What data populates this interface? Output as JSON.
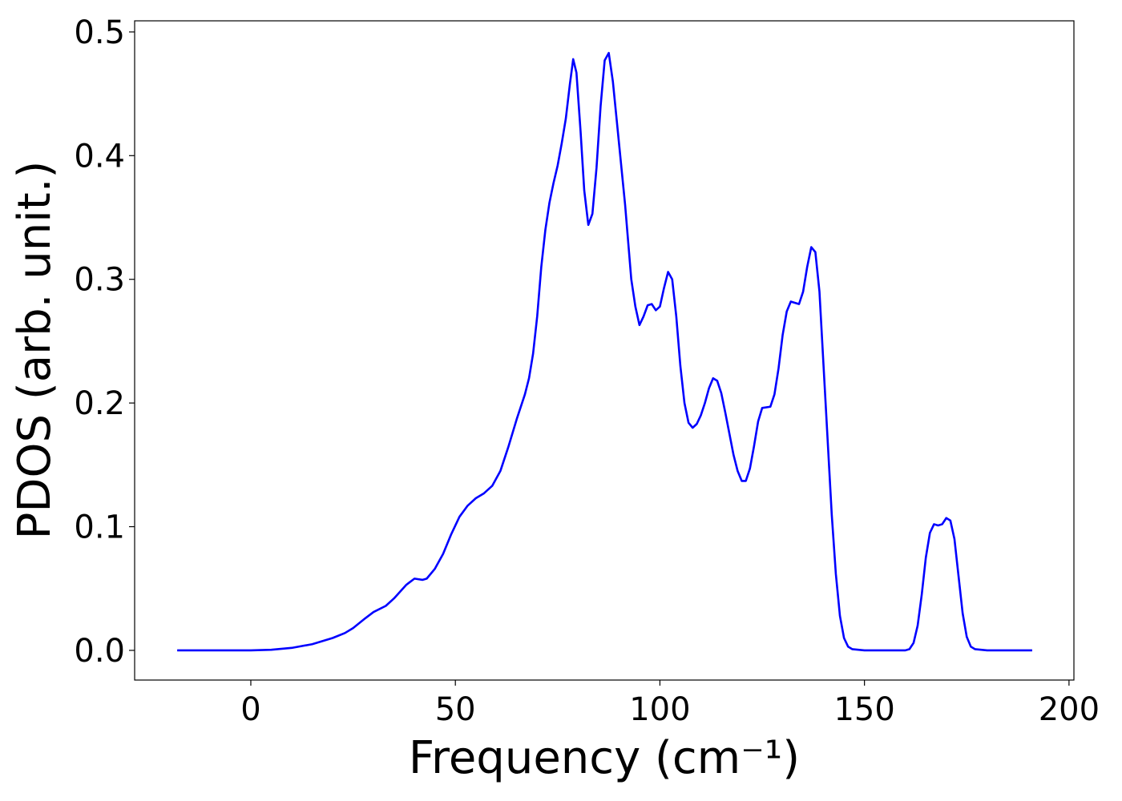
{
  "chart_data": {
    "type": "line",
    "xlabel": "Frequency (cm⁻¹)",
    "ylabel": "PDOS (arb. unit.)",
    "x": [
      -18,
      0,
      5,
      10,
      15,
      20,
      23,
      25,
      28,
      30,
      33,
      35,
      38,
      40,
      42,
      43,
      45,
      47,
      49,
      51,
      53,
      55,
      57,
      59,
      61,
      63,
      65,
      67,
      68,
      69,
      70,
      71,
      72,
      73,
      74,
      75,
      76,
      77,
      78,
      78.8,
      79.6,
      80.6,
      81.5,
      82.5,
      83.5,
      84.5,
      85.5,
      86.5,
      87.5,
      88.5,
      90,
      91.5,
      93,
      94,
      95,
      96,
      97,
      98,
      99,
      100,
      101,
      102,
      103,
      104,
      105,
      106,
      107,
      108,
      109,
      110,
      111,
      112,
      113,
      114,
      115,
      116,
      117,
      118,
      119,
      120,
      121,
      122,
      123,
      124,
      125,
      127,
      128,
      129,
      130,
      131,
      132,
      134,
      135,
      136,
      137,
      138,
      139,
      140,
      141,
      142,
      143,
      144,
      145,
      146,
      147,
      150,
      160,
      161,
      162,
      163,
      164,
      165,
      166,
      167,
      168,
      169,
      170,
      171,
      172,
      173,
      174,
      175,
      176,
      177,
      180,
      191
    ],
    "series": [
      {
        "name": "PDOS",
        "color": "#0000ff",
        "values": [
          0,
          0,
          0.0005,
          0.002,
          0.005,
          0.01,
          0.014,
          0.018,
          0.026,
          0.031,
          0.036,
          0.042,
          0.053,
          0.058,
          0.057,
          0.058,
          0.066,
          0.078,
          0.094,
          0.108,
          0.117,
          0.123,
          0.127,
          0.133,
          0.145,
          0.165,
          0.187,
          0.207,
          0.22,
          0.24,
          0.27,
          0.31,
          0.34,
          0.362,
          0.378,
          0.392,
          0.41,
          0.43,
          0.458,
          0.478,
          0.467,
          0.42,
          0.372,
          0.344,
          0.353,
          0.39,
          0.44,
          0.477,
          0.483,
          0.46,
          0.41,
          0.36,
          0.3,
          0.278,
          0.263,
          0.27,
          0.279,
          0.28,
          0.275,
          0.278,
          0.293,
          0.306,
          0.3,
          0.27,
          0.23,
          0.2,
          0.184,
          0.18,
          0.183,
          0.19,
          0.2,
          0.212,
          0.22,
          0.218,
          0.208,
          0.192,
          0.175,
          0.158,
          0.145,
          0.137,
          0.137,
          0.147,
          0.165,
          0.185,
          0.196,
          0.197,
          0.207,
          0.228,
          0.255,
          0.274,
          0.282,
          0.28,
          0.29,
          0.31,
          0.326,
          0.322,
          0.29,
          0.23,
          0.17,
          0.11,
          0.062,
          0.028,
          0.01,
          0.003,
          0.001,
          0,
          0,
          0.001,
          0.006,
          0.02,
          0.045,
          0.075,
          0.095,
          0.102,
          0.101,
          0.102,
          0.107,
          0.105,
          0.09,
          0.06,
          0.03,
          0.011,
          0.003,
          0.001,
          0,
          0
        ]
      }
    ],
    "xlim": [
      -28.4,
      201.2
    ],
    "xticks": [
      0,
      50,
      100,
      150,
      200
    ],
    "ylim": [
      -0.024,
      0.509
    ],
    "yticks": [
      {
        "value": 0,
        "label": "0.0"
      },
      0.1,
      0.2,
      0.3,
      0.4,
      0.5
    ]
  }
}
